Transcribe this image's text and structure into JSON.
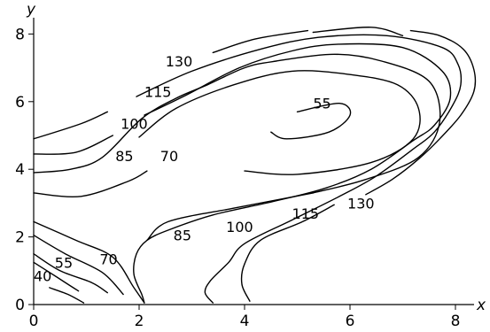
{
  "chart_data": {
    "type": "contour",
    "xlabel": "x",
    "ylabel": "y",
    "xlim": [
      0,
      8
    ],
    "ylim": [
      0,
      8
    ],
    "xticks": [
      0,
      2,
      4,
      6,
      8
    ],
    "yticks": [
      0,
      2,
      4,
      6,
      8
    ],
    "grid": false,
    "levels": [
      40,
      55,
      70,
      85,
      100,
      115,
      130
    ],
    "label_positions": [
      {
        "text": "130",
        "x": 2.5,
        "y": 7.2
      },
      {
        "text": "115",
        "x": 2.1,
        "y": 6.3
      },
      {
        "text": "100",
        "x": 1.65,
        "y": 5.35
      },
      {
        "text": "85",
        "x": 1.55,
        "y": 4.4
      },
      {
        "text": "70",
        "x": 2.4,
        "y": 4.4
      },
      {
        "text": "55",
        "x": 5.3,
        "y": 5.95
      },
      {
        "text": "85",
        "x": 2.65,
        "y": 2.05
      },
      {
        "text": "100",
        "x": 3.65,
        "y": 2.3
      },
      {
        "text": "115",
        "x": 4.9,
        "y": 2.7
      },
      {
        "text": "130",
        "x": 5.95,
        "y": 3.0
      },
      {
        "text": "55",
        "x": 0.4,
        "y": 1.25
      },
      {
        "text": "70",
        "x": 1.25,
        "y": 1.35
      },
      {
        "text": "40",
        "x": 0.0,
        "y": 0.85
      }
    ],
    "contours": [
      {
        "level": 55,
        "points": [
          [
            5.0,
            5.7
          ],
          [
            5.8,
            5.95
          ],
          [
            6.0,
            5.6
          ],
          [
            5.6,
            5.1
          ],
          [
            4.8,
            4.9
          ],
          [
            4.5,
            5.1
          ]
        ]
      },
      {
        "level": 70,
        "points": [
          [
            4.0,
            3.95
          ],
          [
            5.0,
            3.85
          ],
          [
            6.4,
            4.2
          ],
          [
            7.2,
            4.9
          ],
          [
            7.3,
            5.8
          ],
          [
            6.9,
            6.5
          ],
          [
            6.0,
            6.8
          ],
          [
            4.9,
            6.9
          ],
          [
            3.8,
            6.5
          ],
          [
            2.7,
            5.8
          ],
          [
            2.0,
            4.95
          ]
        ]
      },
      {
        "level": 70,
        "points": [
          [
            0,
            2.45
          ],
          [
            0.8,
            1.9
          ],
          [
            1.5,
            1.4
          ],
          [
            1.9,
            0.5
          ],
          [
            2.1,
            0.05
          ]
        ]
      },
      {
        "level": 85,
        "points": [
          [
            0,
            3.3
          ],
          [
            0.9,
            3.2
          ],
          [
            1.8,
            3.65
          ],
          [
            2.15,
            3.95
          ]
        ]
      },
      {
        "level": 85,
        "points": [
          [
            2.15,
            1.9
          ],
          [
            2.55,
            2.45
          ],
          [
            3.8,
            2.85
          ],
          [
            4.8,
            3.15
          ],
          [
            5.3,
            3.3
          ]
        ]
      },
      {
        "level": 85,
        "points": [
          [
            5.3,
            3.3
          ],
          [
            6.3,
            3.7
          ],
          [
            7.3,
            4.35
          ],
          [
            7.7,
            5.4
          ],
          [
            7.5,
            6.6
          ],
          [
            6.6,
            7.2
          ],
          [
            5.7,
            7.4
          ],
          [
            4.6,
            7.2
          ],
          [
            4.0,
            7.0
          ],
          [
            3.3,
            6.5
          ],
          [
            2.7,
            6.1
          ],
          [
            2.05,
            5.5
          ],
          [
            1.3,
            4.35
          ],
          [
            0.7,
            4.0
          ],
          [
            0,
            3.9
          ]
        ]
      },
      {
        "level": 85,
        "points": [
          [
            0,
            2.05
          ],
          [
            0.6,
            1.5
          ],
          [
            1.3,
            0.95
          ],
          [
            1.7,
            0.3
          ]
        ]
      },
      {
        "level": 100,
        "points": [
          [
            0,
            4.45
          ],
          [
            0.8,
            4.5
          ],
          [
            1.5,
            5.0
          ]
        ]
      },
      {
        "level": 100,
        "points": [
          [
            2.1,
            5.6
          ],
          [
            2.9,
            6.2
          ],
          [
            3.9,
            7.0
          ],
          [
            4.9,
            7.5
          ],
          [
            5.8,
            7.7
          ],
          [
            7.0,
            7.6
          ],
          [
            7.75,
            6.9
          ],
          [
            7.9,
            6.1
          ],
          [
            7.6,
            5.3
          ],
          [
            7.2,
            4.85
          ],
          [
            6.4,
            4.0
          ],
          [
            5.55,
            3.45
          ],
          [
            4.55,
            3.05
          ],
          [
            3.4,
            2.65
          ],
          [
            2.55,
            2.2
          ],
          [
            2.15,
            1.9
          ],
          [
            1.95,
            1.5
          ],
          [
            1.9,
            0.9
          ],
          [
            2.05,
            0.3
          ],
          [
            2.1,
            0.05
          ]
        ]
      },
      {
        "level": 100,
        "points": [
          [
            0,
            1.5
          ],
          [
            0.5,
            1.0
          ],
          [
            1.1,
            0.65
          ],
          [
            1.4,
            0.35
          ]
        ]
      },
      {
        "level": 115,
        "points": [
          [
            0,
            4.9
          ],
          [
            0.9,
            5.35
          ],
          [
            1.4,
            5.7
          ]
        ]
      },
      {
        "level": 115,
        "points": [
          [
            1.95,
            6.15
          ],
          [
            3.0,
            6.9
          ],
          [
            4.3,
            7.55
          ],
          [
            5.4,
            7.9
          ],
          [
            6.7,
            7.95
          ],
          [
            7.75,
            7.6
          ],
          [
            8.05,
            7.1
          ],
          [
            8.1,
            6.5
          ],
          [
            7.95,
            5.9
          ],
          [
            7.6,
            5.1
          ],
          [
            7.2,
            4.6
          ],
          [
            6.5,
            3.8
          ],
          [
            5.8,
            3.2
          ],
          [
            4.9,
            2.5
          ],
          [
            4.0,
            1.8
          ],
          [
            3.7,
            1.25
          ],
          [
            3.35,
            0.7
          ],
          [
            3.25,
            0.35
          ],
          [
            3.4,
            0.05
          ]
        ]
      },
      {
        "level": 115,
        "points": [
          [
            0,
            1.25
          ],
          [
            0.45,
            0.8
          ],
          [
            0.85,
            0.4
          ]
        ]
      },
      {
        "level": 130,
        "points": [
          [
            3.4,
            7.45
          ],
          [
            4.2,
            7.85
          ],
          [
            5.2,
            8.1
          ]
        ]
      },
      {
        "level": 130,
        "points": [
          [
            5.3,
            8.05
          ],
          [
            6.4,
            8.2
          ],
          [
            7.0,
            7.95
          ]
        ]
      },
      {
        "level": 130,
        "points": [
          [
            7.15,
            8.1
          ],
          [
            7.7,
            7.95
          ],
          [
            8.15,
            7.55
          ],
          [
            8.35,
            6.95
          ],
          [
            8.35,
            6.3
          ],
          [
            8.1,
            5.6
          ],
          [
            7.7,
            4.9
          ],
          [
            7.3,
            4.3
          ],
          [
            6.8,
            3.7
          ],
          [
            6.3,
            3.25
          ]
        ]
      },
      {
        "level": 130,
        "points": [
          [
            5.7,
            2.95
          ],
          [
            5.1,
            2.45
          ],
          [
            4.3,
            1.9
          ],
          [
            4.0,
            1.2
          ],
          [
            3.95,
            0.6
          ],
          [
            4.1,
            0.1
          ]
        ]
      },
      {
        "level": 130,
        "points": [
          [
            0.3,
            0.5
          ],
          [
            0.65,
            0.3
          ],
          [
            0.95,
            0.05
          ]
        ]
      }
    ]
  }
}
